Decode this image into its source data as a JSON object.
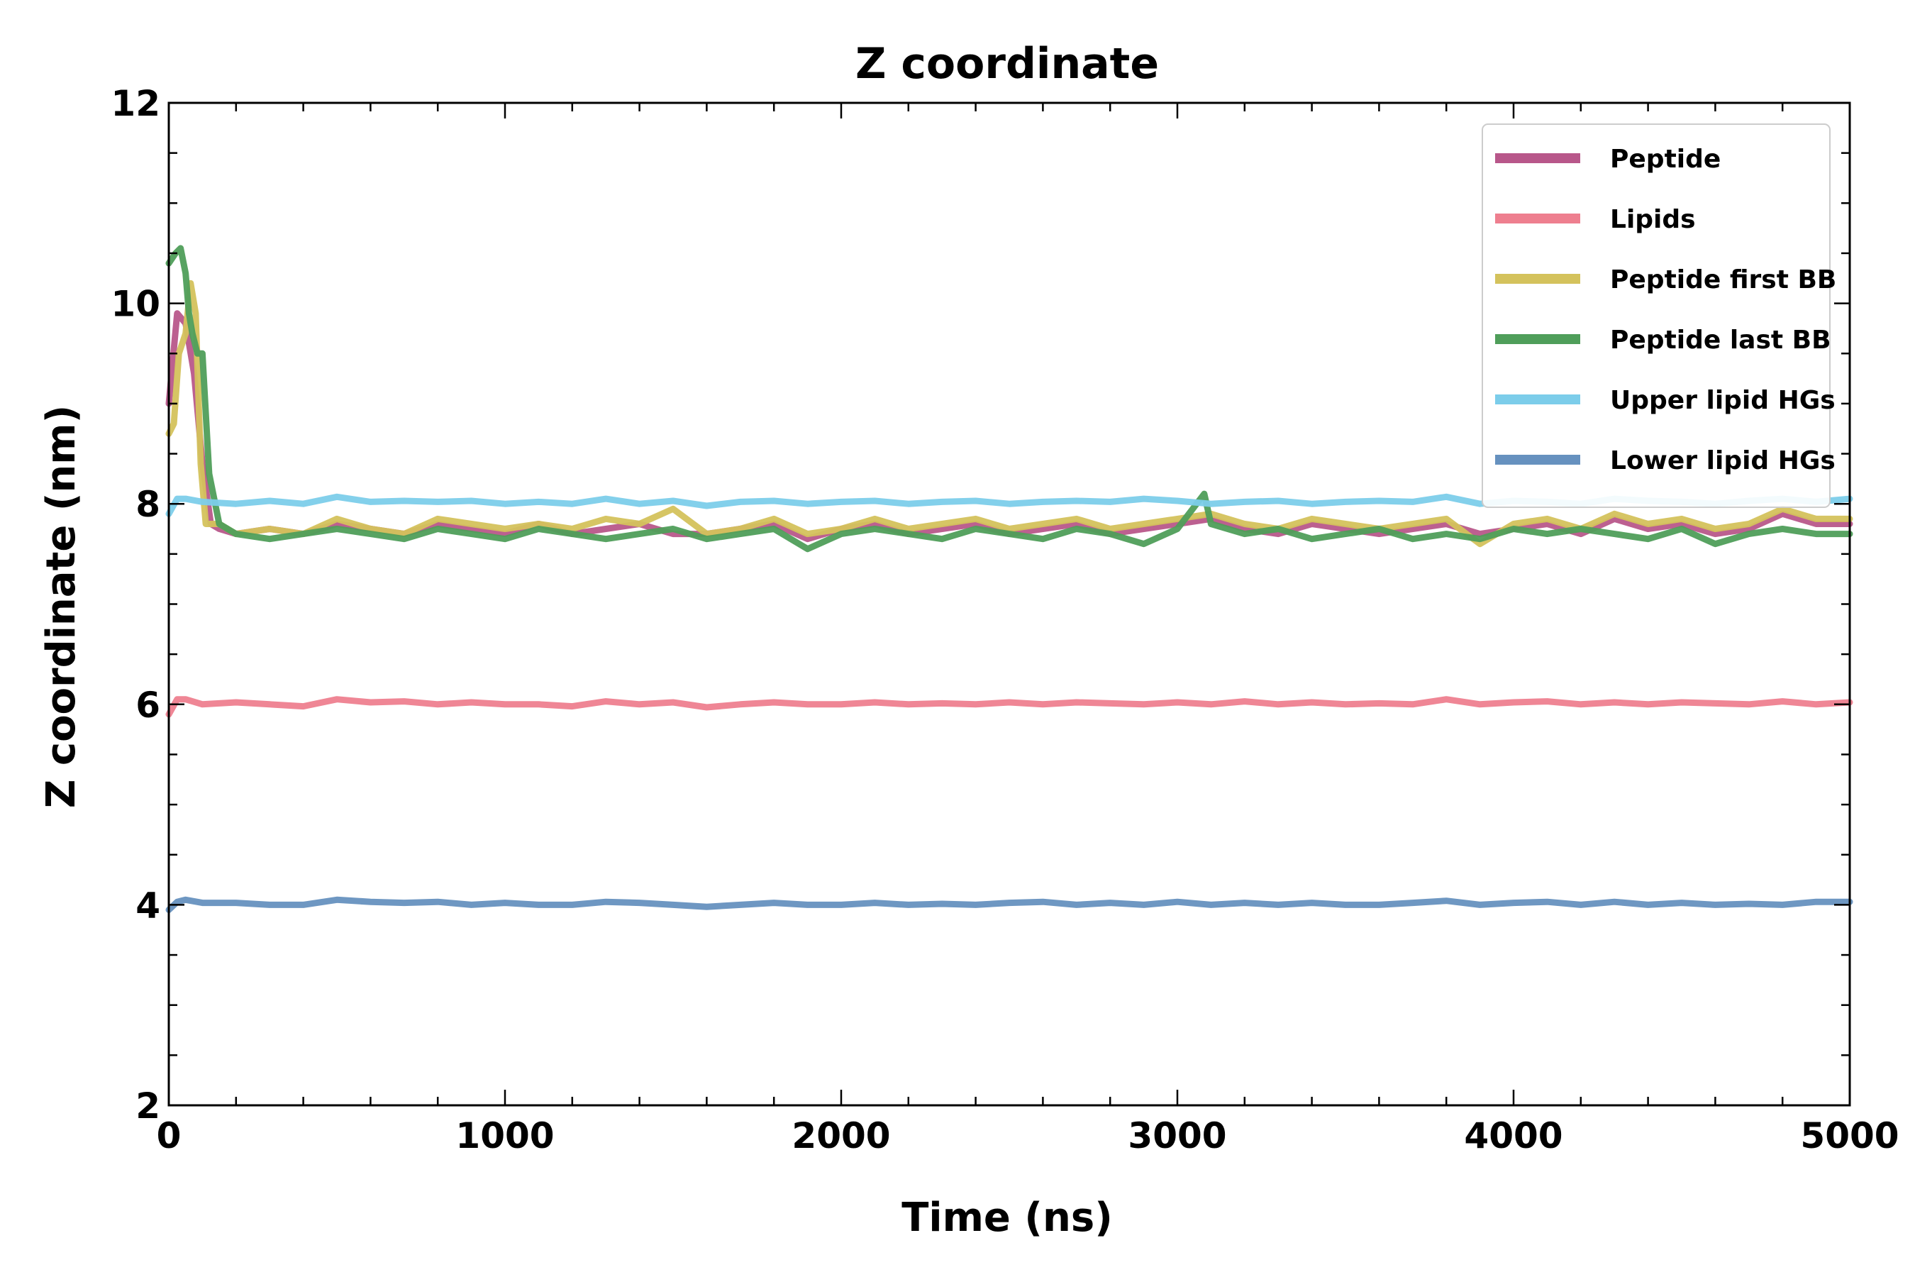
{
  "chart_data": {
    "type": "line",
    "title": "Z coordinate",
    "xlabel": "Time (ns)",
    "ylabel": "Z coordinate (nm)",
    "xlim": [
      0,
      5000
    ],
    "ylim": [
      2,
      12
    ],
    "xticks": [
      0,
      1000,
      2000,
      3000,
      4000,
      5000
    ],
    "yticks": [
      2,
      4,
      6,
      8,
      10,
      12
    ],
    "xminor_step": 200,
    "yminor_step": 0.5,
    "grid": false,
    "legend_position": "top-right",
    "series": [
      {
        "name": "Peptide",
        "color": "#b8578a",
        "x": [
          0,
          25,
          50,
          75,
          100,
          125,
          150,
          200,
          300,
          400,
          500,
          600,
          700,
          800,
          900,
          1000,
          1100,
          1200,
          1300,
          1400,
          1500,
          1600,
          1700,
          1800,
          1900,
          2000,
          2100,
          2200,
          2300,
          2400,
          2500,
          2600,
          2700,
          2800,
          2900,
          3000,
          3100,
          3200,
          3300,
          3400,
          3500,
          3600,
          3700,
          3800,
          3900,
          4000,
          4100,
          4200,
          4300,
          4400,
          4500,
          4600,
          4700,
          4800,
          4900,
          5000
        ],
        "y": [
          9.0,
          9.9,
          9.8,
          9.3,
          8.4,
          7.8,
          7.75,
          7.7,
          7.75,
          7.7,
          7.8,
          7.75,
          7.7,
          7.8,
          7.75,
          7.7,
          7.8,
          7.7,
          7.75,
          7.8,
          7.7,
          7.7,
          7.75,
          7.8,
          7.65,
          7.75,
          7.8,
          7.7,
          7.75,
          7.8,
          7.7,
          7.75,
          7.8,
          7.7,
          7.75,
          7.8,
          7.85,
          7.75,
          7.7,
          7.8,
          7.75,
          7.7,
          7.75,
          7.8,
          7.7,
          7.75,
          7.8,
          7.7,
          7.85,
          7.75,
          7.8,
          7.7,
          7.75,
          7.9,
          7.8,
          7.8
        ]
      },
      {
        "name": "Lipids",
        "color": "#ee7f8f",
        "x": [
          0,
          25,
          50,
          100,
          200,
          300,
          400,
          500,
          600,
          700,
          800,
          900,
          1000,
          1100,
          1200,
          1300,
          1400,
          1500,
          1600,
          1700,
          1800,
          1900,
          2000,
          2100,
          2200,
          2300,
          2400,
          2500,
          2600,
          2700,
          2800,
          2900,
          3000,
          3100,
          3200,
          3300,
          3400,
          3500,
          3600,
          3700,
          3800,
          3900,
          4000,
          4100,
          4200,
          4300,
          4400,
          4500,
          4600,
          4700,
          4800,
          4900,
          5000
        ],
        "y": [
          5.9,
          6.05,
          6.05,
          6.0,
          6.02,
          6.0,
          5.98,
          6.05,
          6.02,
          6.03,
          6.0,
          6.02,
          6.0,
          6.0,
          5.98,
          6.03,
          6.0,
          6.02,
          5.97,
          6.0,
          6.02,
          6.0,
          6.0,
          6.02,
          6.0,
          6.01,
          6.0,
          6.02,
          6.0,
          6.02,
          6.01,
          6.0,
          6.02,
          6.0,
          6.03,
          6.0,
          6.02,
          6.0,
          6.01,
          6.0,
          6.05,
          6.0,
          6.02,
          6.03,
          6.0,
          6.02,
          6.0,
          6.02,
          6.01,
          6.0,
          6.03,
          6.0,
          6.02
        ]
      },
      {
        "name": "Peptide first BB",
        "color": "#d4c25c",
        "x": [
          0,
          15,
          30,
          50,
          65,
          80,
          95,
          110,
          150,
          200,
          300,
          400,
          500,
          600,
          700,
          800,
          900,
          1000,
          1100,
          1200,
          1300,
          1400,
          1500,
          1600,
          1700,
          1800,
          1900,
          2000,
          2100,
          2200,
          2300,
          2400,
          2500,
          2600,
          2700,
          2800,
          2900,
          3000,
          3100,
          3200,
          3300,
          3400,
          3500,
          3600,
          3700,
          3800,
          3900,
          4000,
          4100,
          4200,
          4300,
          4400,
          4500,
          4600,
          4700,
          4800,
          4900,
          5000
        ],
        "y": [
          8.7,
          8.8,
          9.5,
          9.7,
          10.2,
          9.9,
          8.4,
          7.8,
          7.8,
          7.7,
          7.75,
          7.7,
          7.85,
          7.75,
          7.7,
          7.85,
          7.8,
          7.75,
          7.8,
          7.75,
          7.85,
          7.8,
          7.95,
          7.7,
          7.75,
          7.85,
          7.7,
          7.75,
          7.85,
          7.75,
          7.8,
          7.85,
          7.75,
          7.8,
          7.85,
          7.75,
          7.8,
          7.85,
          7.9,
          7.8,
          7.75,
          7.85,
          7.8,
          7.75,
          7.8,
          7.85,
          7.6,
          7.8,
          7.85,
          7.75,
          7.9,
          7.8,
          7.85,
          7.75,
          7.8,
          7.95,
          7.85,
          7.85
        ]
      },
      {
        "name": "Peptide last BB",
        "color": "#4f9e5a",
        "x": [
          0,
          20,
          35,
          50,
          60,
          70,
          85,
          100,
          120,
          150,
          200,
          300,
          400,
          500,
          600,
          700,
          800,
          900,
          1000,
          1100,
          1200,
          1300,
          1400,
          1500,
          1600,
          1700,
          1800,
          1900,
          2000,
          2100,
          2200,
          2300,
          2400,
          2500,
          2600,
          2700,
          2800,
          2900,
          3000,
          3080,
          3100,
          3200,
          3300,
          3400,
          3500,
          3600,
          3700,
          3800,
          3900,
          4000,
          4100,
          4200,
          4300,
          4400,
          4500,
          4600,
          4700,
          4800,
          4900,
          5000
        ],
        "y": [
          10.4,
          10.5,
          10.55,
          10.3,
          9.9,
          9.7,
          9.5,
          9.5,
          8.3,
          7.8,
          7.7,
          7.65,
          7.7,
          7.75,
          7.7,
          7.65,
          7.75,
          7.7,
          7.65,
          7.75,
          7.7,
          7.65,
          7.7,
          7.75,
          7.65,
          7.7,
          7.75,
          7.55,
          7.7,
          7.75,
          7.7,
          7.65,
          7.75,
          7.7,
          7.65,
          7.75,
          7.7,
          7.6,
          7.75,
          8.1,
          7.8,
          7.7,
          7.75,
          7.65,
          7.7,
          7.75,
          7.65,
          7.7,
          7.65,
          7.75,
          7.7,
          7.75,
          7.7,
          7.65,
          7.75,
          7.6,
          7.7,
          7.75,
          7.7,
          7.7
        ]
      },
      {
        "name": "Upper lipid HGs",
        "color": "#7ccdea",
        "x": [
          0,
          25,
          50,
          100,
          200,
          300,
          400,
          500,
          600,
          700,
          800,
          900,
          1000,
          1100,
          1200,
          1300,
          1400,
          1500,
          1600,
          1700,
          1800,
          1900,
          2000,
          2100,
          2200,
          2300,
          2400,
          2500,
          2600,
          2700,
          2800,
          2900,
          3000,
          3100,
          3200,
          3300,
          3400,
          3500,
          3600,
          3700,
          3800,
          3900,
          4000,
          4100,
          4200,
          4300,
          4400,
          4500,
          4600,
          4700,
          4800,
          4900,
          5000
        ],
        "y": [
          7.9,
          8.05,
          8.05,
          8.02,
          8.0,
          8.03,
          8.0,
          8.07,
          8.02,
          8.03,
          8.02,
          8.03,
          8.0,
          8.02,
          8.0,
          8.05,
          8.0,
          8.03,
          7.98,
          8.02,
          8.03,
          8.0,
          8.02,
          8.03,
          8.0,
          8.02,
          8.03,
          8.0,
          8.02,
          8.03,
          8.02,
          8.05,
          8.03,
          8.0,
          8.02,
          8.03,
          8.0,
          8.02,
          8.03,
          8.02,
          8.07,
          8.0,
          8.03,
          8.02,
          8.0,
          8.05,
          8.03,
          8.02,
          8.0,
          8.03,
          8.05,
          8.02,
          8.05
        ]
      },
      {
        "name": "Lower lipid HGs",
        "color": "#6691bf",
        "x": [
          0,
          25,
          50,
          100,
          200,
          300,
          400,
          500,
          600,
          700,
          800,
          900,
          1000,
          1100,
          1200,
          1300,
          1400,
          1500,
          1600,
          1700,
          1800,
          1900,
          2000,
          2100,
          2200,
          2300,
          2400,
          2500,
          2600,
          2700,
          2800,
          2900,
          3000,
          3100,
          3200,
          3300,
          3400,
          3500,
          3600,
          3700,
          3800,
          3900,
          4000,
          4100,
          4200,
          4300,
          4400,
          4500,
          4600,
          4700,
          4800,
          4900,
          5000
        ],
        "y": [
          3.95,
          4.03,
          4.05,
          4.02,
          4.02,
          4.0,
          4.0,
          4.05,
          4.03,
          4.02,
          4.03,
          4.0,
          4.02,
          4.0,
          4.0,
          4.03,
          4.02,
          4.0,
          3.98,
          4.0,
          4.02,
          4.0,
          4.0,
          4.02,
          4.0,
          4.01,
          4.0,
          4.02,
          4.03,
          4.0,
          4.02,
          4.0,
          4.03,
          4.0,
          4.02,
          4.0,
          4.02,
          4.0,
          4.0,
          4.02,
          4.04,
          4.0,
          4.02,
          4.03,
          4.0,
          4.03,
          4.0,
          4.02,
          4.0,
          4.01,
          4.0,
          4.03,
          4.03
        ]
      }
    ]
  }
}
